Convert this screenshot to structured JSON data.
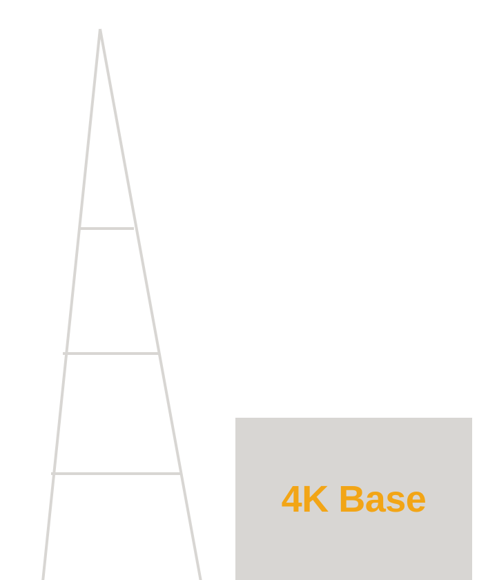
{
  "card": {
    "label": "4K Base"
  },
  "colors": {
    "background": "#ffffff",
    "illustration": "#d8d6d3",
    "card_background": "#d8d6d3",
    "accent": "#f2a516"
  },
  "illustration": {
    "icon": "ladder-icon",
    "rungs": 3
  }
}
